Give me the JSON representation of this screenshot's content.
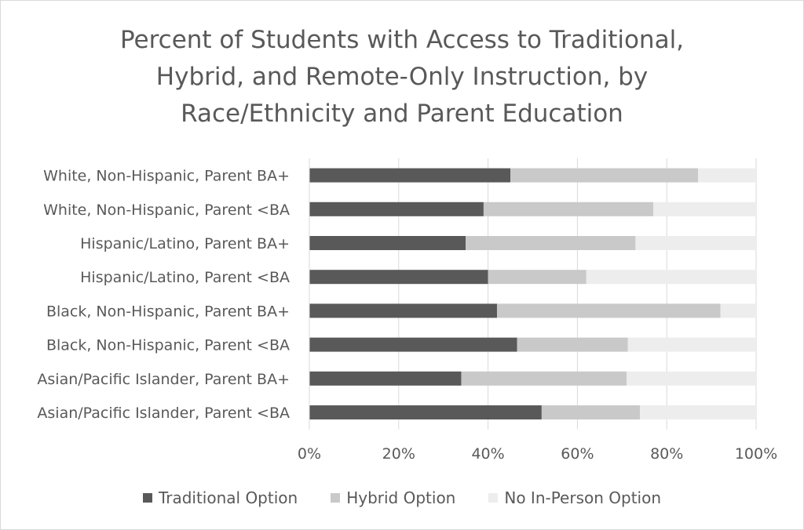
{
  "chart_data": {
    "type": "bar",
    "orientation": "horizontal",
    "stacked": true,
    "title": "Percent of Students with Access to Traditional, Hybrid, and Remote-Only Instruction, by Race/Ethnicity and Parent Education",
    "categories": [
      "White, Non-Hispanic, Parent BA+",
      "White, Non-Hispanic, Parent <BA",
      "Hispanic/Latino, Parent BA+",
      "Hispanic/Latino, Parent <BA",
      "Black, Non-Hispanic, Parent BA+",
      "Black, Non-Hispanic, Parent <BA",
      "Asian/Pacific Islander, Parent BA+",
      "Asian/Pacific Islander, Parent <BA"
    ],
    "series": [
      {
        "name": "Traditional Option",
        "color": "#595959",
        "values": [
          45,
          39,
          35,
          40,
          42,
          46.5,
          34,
          52
        ]
      },
      {
        "name": "Hybrid Option",
        "color": "#c9c9c9",
        "values": [
          42,
          38,
          38,
          22,
          50,
          24.8,
          37,
          22
        ]
      },
      {
        "name": "No In-Person Option",
        "color": "#ededed",
        "values": [
          13,
          23,
          27,
          38,
          8,
          28.7,
          29,
          26
        ]
      }
    ],
    "xlim": [
      0,
      100
    ],
    "x_ticks": [
      "0%",
      "20%",
      "40%",
      "60%",
      "80%",
      "100%"
    ],
    "grid": "vertical",
    "legend_position": "bottom"
  }
}
